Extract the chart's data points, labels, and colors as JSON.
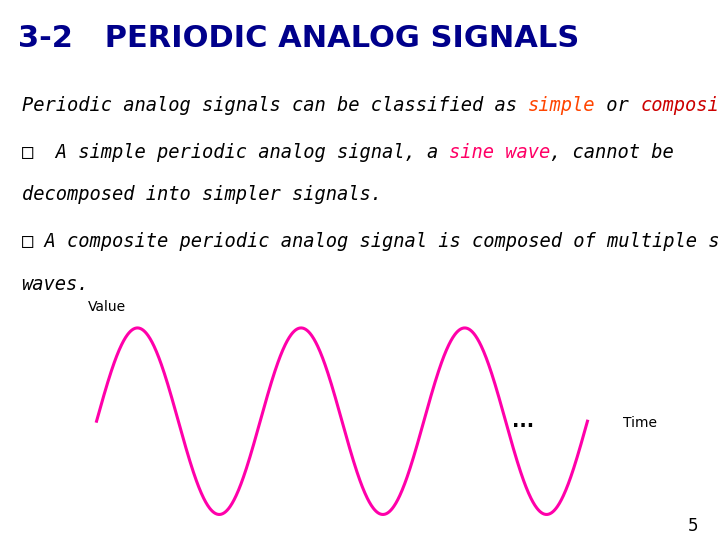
{
  "title": "3-2   PERIODIC ANALOG SIGNALS",
  "title_bg": "#00BFFF",
  "title_color": "#00008B",
  "title_fontsize": 22,
  "body_fontsize": 13.5,
  "line1_parts": [
    {
      "text": "Periodic analog signals can be classified as ",
      "color": "black",
      "style": "italic"
    },
    {
      "text": "simple",
      "color": "#FF4500",
      "style": "italic"
    },
    {
      "text": " or ",
      "color": "black",
      "style": "italic"
    },
    {
      "text": "composite",
      "color": "#CC0000",
      "style": "italic"
    },
    {
      "text": ".",
      "color": "black",
      "style": "italic"
    }
  ],
  "line2_parts": [
    {
      "text": "□  A simple periodic analog signal, a ",
      "color": "black",
      "style": "italic"
    },
    {
      "text": "sine wave",
      "color": "#FF0066",
      "style": "italic"
    },
    {
      "text": ", cannot be",
      "color": "black",
      "style": "italic"
    }
  ],
  "line2b": "decomposed into simpler signals.",
  "line3_parts": [
    {
      "text": "□ A composite periodic analog signal is composed of multiple sine",
      "color": "black",
      "style": "italic"
    }
  ],
  "line3b": "waves.",
  "wave_color": "#FF00AA",
  "wave_amplitude": 0.6,
  "wave_freq": 1.0,
  "axis_color": "#555555",
  "ylabel": "Value",
  "xlabel": "Time",
  "dots": "...",
  "page_number": "5",
  "bg_color": "#FFFFFF"
}
